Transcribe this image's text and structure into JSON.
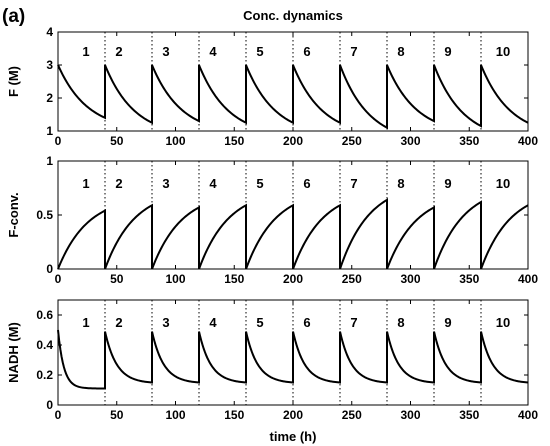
{
  "panel_label": "(a)",
  "chart_data": [
    {
      "type": "line",
      "title": "Conc. dynamics",
      "ylabel": "F (M)",
      "xlabel": "",
      "xlim": [
        0,
        400
      ],
      "ylim": [
        1,
        4
      ],
      "xticks": [
        0,
        50,
        100,
        150,
        200,
        250,
        300,
        350,
        400
      ],
      "yticks": [
        1,
        2,
        3,
        4
      ],
      "cycle_boundaries": [
        40,
        80,
        120,
        160,
        200,
        240,
        280,
        320,
        360
      ],
      "cycle_labels": [
        "1",
        "2",
        "3",
        "4",
        "5",
        "6",
        "7",
        "8",
        "9",
        "10"
      ],
      "cycles": [
        {
          "start": 0,
          "end": 40,
          "y0": 3.0,
          "y1": 1.4,
          "k": 0.04
        },
        {
          "start": 40,
          "end": 80,
          "y0": 3.0,
          "y1": 1.25,
          "k": 0.04
        },
        {
          "start": 80,
          "end": 120,
          "y0": 3.0,
          "y1": 1.3,
          "k": 0.04
        },
        {
          "start": 120,
          "end": 160,
          "y0": 3.0,
          "y1": 1.25,
          "k": 0.04
        },
        {
          "start": 160,
          "end": 200,
          "y0": 3.0,
          "y1": 1.25,
          "k": 0.04
        },
        {
          "start": 200,
          "end": 240,
          "y0": 3.0,
          "y1": 1.25,
          "k": 0.04
        },
        {
          "start": 240,
          "end": 280,
          "y0": 3.0,
          "y1": 1.1,
          "k": 0.04
        },
        {
          "start": 280,
          "end": 320,
          "y0": 3.0,
          "y1": 1.3,
          "k": 0.04
        },
        {
          "start": 320,
          "end": 360,
          "y0": 3.0,
          "y1": 1.15,
          "k": 0.04
        },
        {
          "start": 360,
          "end": 400,
          "y0": 3.0,
          "y1": 1.25,
          "k": 0.04
        }
      ]
    },
    {
      "type": "line",
      "title": "",
      "ylabel": "F-conv.",
      "xlabel": "",
      "xlim": [
        0,
        400
      ],
      "ylim": [
        0,
        1
      ],
      "xticks": [
        0,
        50,
        100,
        150,
        200,
        250,
        300,
        350,
        400
      ],
      "yticks": [
        0,
        0.5,
        1
      ],
      "cycle_boundaries": [
        40,
        80,
        120,
        160,
        200,
        240,
        280,
        320,
        360
      ],
      "cycle_labels": [
        "1",
        "2",
        "3",
        "4",
        "5",
        "6",
        "7",
        "8",
        "9",
        "10"
      ],
      "cycles": [
        {
          "start": 0,
          "end": 40,
          "y0": 0,
          "y1": 0.54,
          "k": 0.04
        },
        {
          "start": 40,
          "end": 80,
          "y0": 0,
          "y1": 0.59,
          "k": 0.04
        },
        {
          "start": 80,
          "end": 120,
          "y0": 0,
          "y1": 0.57,
          "k": 0.04
        },
        {
          "start": 120,
          "end": 160,
          "y0": 0,
          "y1": 0.59,
          "k": 0.04
        },
        {
          "start": 160,
          "end": 200,
          "y0": 0,
          "y1": 0.59,
          "k": 0.04
        },
        {
          "start": 200,
          "end": 240,
          "y0": 0,
          "y1": 0.59,
          "k": 0.04
        },
        {
          "start": 240,
          "end": 280,
          "y0": 0,
          "y1": 0.64,
          "k": 0.04
        },
        {
          "start": 280,
          "end": 320,
          "y0": 0,
          "y1": 0.57,
          "k": 0.04
        },
        {
          "start": 320,
          "end": 360,
          "y0": 0,
          "y1": 0.62,
          "k": 0.04
        },
        {
          "start": 360,
          "end": 400,
          "y0": 0,
          "y1": 0.59,
          "k": 0.04
        }
      ]
    },
    {
      "type": "line",
      "title": "",
      "ylabel": "NADH (M)",
      "xlabel": "time (h)",
      "xlim": [
        0,
        400
      ],
      "ylim": [
        0,
        0.7
      ],
      "xticks": [
        0,
        50,
        100,
        150,
        200,
        250,
        300,
        350,
        400
      ],
      "yticks": [
        0,
        0.2,
        0.4,
        0.6
      ],
      "cycle_boundaries": [
        40,
        80,
        120,
        160,
        200,
        240,
        280,
        320,
        360
      ],
      "cycle_labels": [
        "1",
        "2",
        "3",
        "4",
        "5",
        "6",
        "7",
        "8",
        "9",
        "10"
      ],
      "cycles": [
        {
          "start": 0,
          "end": 40,
          "y0": 0.5,
          "y1": 0.11,
          "k": 0.2
        },
        {
          "start": 40,
          "end": 80,
          "y0": 0.49,
          "y1": 0.15,
          "k": 0.1
        },
        {
          "start": 80,
          "end": 120,
          "y0": 0.49,
          "y1": 0.15,
          "k": 0.1
        },
        {
          "start": 120,
          "end": 160,
          "y0": 0.49,
          "y1": 0.15,
          "k": 0.1
        },
        {
          "start": 160,
          "end": 200,
          "y0": 0.49,
          "y1": 0.15,
          "k": 0.1
        },
        {
          "start": 200,
          "end": 240,
          "y0": 0.49,
          "y1": 0.15,
          "k": 0.1
        },
        {
          "start": 240,
          "end": 280,
          "y0": 0.49,
          "y1": 0.15,
          "k": 0.1
        },
        {
          "start": 280,
          "end": 320,
          "y0": 0.49,
          "y1": 0.15,
          "k": 0.1
        },
        {
          "start": 320,
          "end": 360,
          "y0": 0.49,
          "y1": 0.15,
          "k": 0.1
        },
        {
          "start": 360,
          "end": 400,
          "y0": 0.49,
          "y1": 0.15,
          "k": 0.1
        }
      ]
    }
  ]
}
